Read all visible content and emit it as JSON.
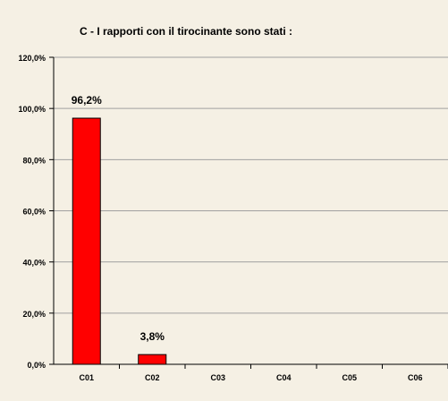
{
  "chart_data": {
    "type": "bar",
    "title": "C - I rapporti con il tirocinante sono stati :",
    "categories": [
      "C01",
      "C02",
      "C03",
      "C04",
      "C05",
      "C06"
    ],
    "values": [
      96.2,
      3.8,
      0,
      0,
      0,
      0
    ],
    "data_labels": [
      "96,2%",
      "3,8%",
      "",
      "",
      "",
      ""
    ],
    "yticks": [
      "0,0%",
      "20,0%",
      "40,0%",
      "60,0%",
      "80,0%",
      "100,0%",
      "120,0%"
    ],
    "ylim": [
      0,
      120
    ],
    "grid": true,
    "legend": "none",
    "colors": {
      "plot_background": "#f5f0e4",
      "bar_fill": "#ff0000",
      "bar_stroke": "#000000",
      "gridline": "#a0a0a0",
      "axis": "#000000"
    }
  }
}
